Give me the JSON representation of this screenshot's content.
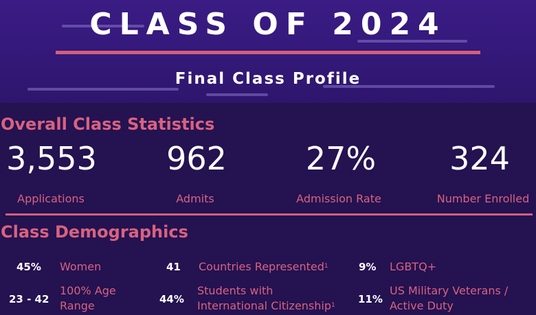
{
  "header": {
    "title": "CLASS OF 2024",
    "subtitle": "Final Class Profile"
  },
  "overall": {
    "heading": "Overall Class Statistics",
    "stats": [
      {
        "value": "3,553",
        "label": "Applications"
      },
      {
        "value": "962",
        "label": "Admits"
      },
      {
        "value": "27%",
        "label": "Admission Rate"
      },
      {
        "value": "324",
        "label": "Number Enrolled"
      }
    ]
  },
  "demographics": {
    "heading": "Class Demographics",
    "items": [
      {
        "value": "45%",
        "label": "Women"
      },
      {
        "value": "41",
        "label": "Countries Represented",
        "mark": "1"
      },
      {
        "value": "9%",
        "label": "LGBTQ+"
      },
      {
        "value": "23 - 42",
        "label_line1": "100% Age",
        "label_line2": "Range"
      },
      {
        "value": "44%",
        "label_line1": "Students with",
        "label_line2": "International Citizenship",
        "mark": "1"
      },
      {
        "value": "11%",
        "label_line1": "US Military Veterans /",
        "label_line2": "Active Duty"
      }
    ]
  },
  "colors": {
    "accent": "#d9627f",
    "background": "#241251",
    "hero": "#341879"
  }
}
